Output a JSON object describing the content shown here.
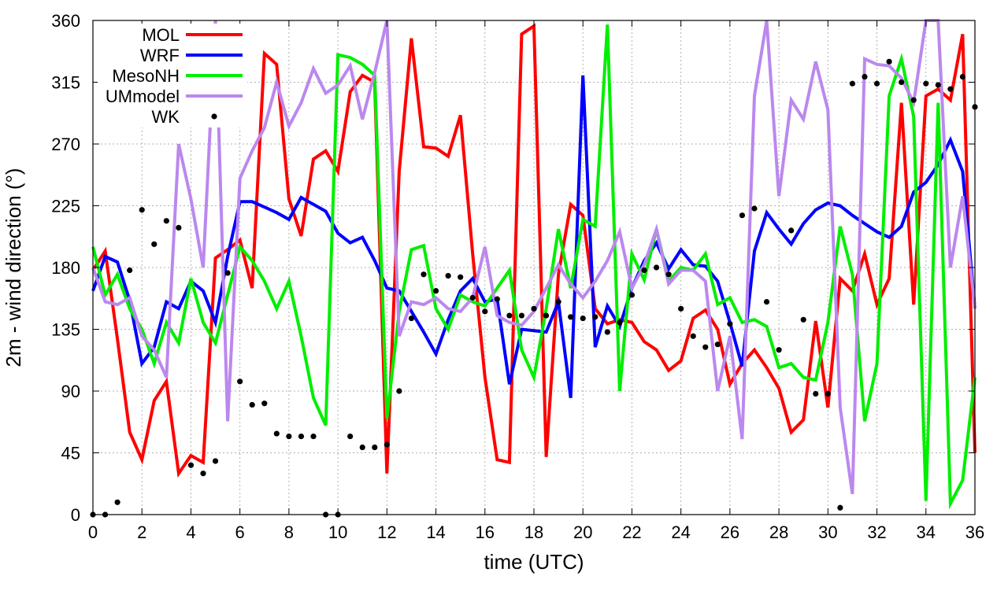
{
  "chart_data": {
    "type": "line",
    "title": "",
    "xlabel": "time (UTC)",
    "ylabel": "2m - wind direction (°)",
    "xlim": [
      0,
      36
    ],
    "ylim": [
      0,
      360
    ],
    "xticks": [
      0,
      2,
      4,
      6,
      8,
      10,
      12,
      14,
      16,
      18,
      20,
      22,
      24,
      26,
      28,
      30,
      32,
      34,
      36
    ],
    "yticks": [
      0,
      45,
      90,
      135,
      180,
      225,
      270,
      315,
      360
    ],
    "grid": true,
    "legend_position": "top-left",
    "series": [
      {
        "name": "MOL",
        "style": "line",
        "color": "#ff0000",
        "x": [
          0,
          0.5,
          1,
          1.5,
          2,
          2.5,
          3,
          3.5,
          4,
          4.5,
          5,
          5.5,
          6,
          6.5,
          7,
          7.5,
          8,
          8.5,
          9,
          9.5,
          10,
          10.5,
          11,
          11.5,
          12,
          12.5,
          13,
          13.5,
          14,
          14.5,
          15,
          15.5,
          16,
          16.5,
          17,
          17.5,
          18,
          18.5,
          19,
          19.5,
          20,
          20.5,
          21,
          21.5,
          22,
          22.5,
          23,
          23.5,
          24,
          24.5,
          25,
          25.5,
          26,
          26.5,
          27,
          27.5,
          28,
          28.5,
          29,
          29.5,
          30,
          30.5,
          31,
          31.5,
          32,
          32.5,
          33,
          33.5,
          34,
          34.5,
          35,
          35.5,
          36
        ],
        "y": [
          178,
          192,
          128,
          60,
          40,
          83,
          97,
          30,
          43,
          38,
          187,
          193,
          200,
          165,
          336,
          328,
          230,
          203,
          259,
          265,
          250,
          308,
          320,
          315,
          30,
          250,
          347,
          268,
          267,
          261,
          291,
          190,
          100,
          40,
          38,
          350,
          356,
          42,
          175,
          226,
          218,
          150,
          139,
          142,
          140,
          126,
          120,
          105,
          112,
          143,
          149,
          135,
          95,
          110,
          120,
          107,
          92,
          60,
          69,
          141,
          78,
          172,
          163,
          190,
          153,
          172,
          300,
          153,
          305,
          310,
          302,
          350,
          45
        ]
      },
      {
        "name": "WRF",
        "style": "line",
        "color": "#0000ff",
        "x": [
          0,
          0.5,
          1,
          1.5,
          2,
          2.5,
          3,
          3.5,
          4,
          4.5,
          5,
          5.5,
          6,
          6.5,
          7,
          7.5,
          8,
          8.5,
          9,
          9.5,
          10,
          10.5,
          11,
          11.5,
          12,
          12.5,
          13,
          13.5,
          14,
          14.5,
          15,
          15.5,
          16,
          16.5,
          17,
          17.5,
          18,
          18.5,
          19,
          19.5,
          20,
          20.5,
          21,
          21.5,
          22,
          22.5,
          23,
          23.5,
          24,
          24.5,
          25,
          25.5,
          26,
          26.5,
          27,
          27.5,
          28,
          28.5,
          29,
          29.5,
          30,
          30.5,
          31,
          31.5,
          32,
          32.5,
          33,
          33.5,
          34,
          34.5,
          35,
          35.5,
          36
        ],
        "y": [
          163,
          188,
          184,
          156,
          110,
          122,
          155,
          150,
          170,
          163,
          140,
          188,
          228,
          228,
          224,
          220,
          215,
          231,
          226,
          221,
          205,
          198,
          202,
          185,
          165,
          163,
          148,
          133,
          117,
          142,
          163,
          172,
          155,
          157,
          95,
          135,
          134,
          133,
          155,
          85,
          320,
          122,
          152,
          137,
          165,
          185,
          198,
          179,
          193,
          182,
          181,
          170,
          140,
          108,
          192,
          220,
          208,
          197,
          212,
          222,
          227,
          225,
          218,
          212,
          206,
          202,
          210,
          235,
          242,
          255,
          273,
          250,
          150
        ]
      },
      {
        "name": "MesoNH",
        "style": "line",
        "color": "#00ee00",
        "x": [
          0,
          0.5,
          1,
          1.5,
          2,
          2.5,
          3,
          3.5,
          4,
          4.5,
          5,
          5.5,
          6,
          6.5,
          7,
          7.5,
          8,
          8.5,
          9,
          9.5,
          10,
          10.5,
          11,
          11.5,
          12,
          12.5,
          13,
          13.5,
          14,
          14.5,
          15,
          15.5,
          16,
          16.5,
          17,
          17.5,
          18,
          18.5,
          19,
          19.5,
          20,
          20.5,
          21,
          21.5,
          22,
          22.5,
          23,
          23.5,
          24,
          24.5,
          25,
          25.5,
          26,
          26.5,
          27,
          27.5,
          28,
          28.5,
          29,
          29.5,
          30,
          30.5,
          31,
          31.5,
          32,
          32.5,
          33,
          33.5,
          34,
          34.5,
          35,
          35.5,
          36
        ],
        "y": [
          195,
          160,
          175,
          150,
          135,
          110,
          140,
          125,
          172,
          140,
          125,
          160,
          195,
          185,
          170,
          150,
          170,
          130,
          85,
          65,
          335,
          333,
          328,
          320,
          70,
          148,
          193,
          196,
          150,
          135,
          160,
          155,
          152,
          165,
          178,
          120,
          100,
          150,
          208,
          165,
          215,
          210,
          357,
          90,
          190,
          171,
          208,
          170,
          180,
          178,
          190,
          153,
          158,
          140,
          142,
          137,
          107,
          110,
          100,
          98,
          140,
          210,
          175,
          68,
          110,
          305,
          332,
          290,
          10,
          300,
          8,
          25,
          100
        ]
      },
      {
        "name": "UMmodel",
        "style": "line",
        "color": "#bb88ee",
        "x": [
          0,
          0.5,
          1,
          1.5,
          2,
          2.5,
          3,
          3.5,
          4,
          4.5,
          5,
          5.5,
          6,
          6.5,
          7,
          7.5,
          8,
          8.5,
          9,
          9.5,
          10,
          10.5,
          11,
          11.5,
          12,
          12.5,
          13,
          13.5,
          14,
          14.5,
          15,
          15.5,
          16,
          16.5,
          17,
          17.5,
          18,
          18.5,
          19,
          19.5,
          20,
          20.5,
          21,
          21.5,
          22,
          22.5,
          23,
          23.5,
          24,
          24.5,
          25,
          25.5,
          26,
          26.5,
          27,
          27.5,
          28,
          28.5,
          29,
          29.5,
          30,
          30.5,
          31,
          31.5,
          32,
          32.5,
          33,
          33.5,
          34,
          34.5,
          35,
          35.5,
          36
        ],
        "y": [
          180,
          155,
          153,
          158,
          130,
          120,
          100,
          270,
          230,
          180,
          360,
          68,
          245,
          265,
          282,
          315,
          283,
          300,
          325,
          307,
          313,
          327,
          288,
          322,
          362,
          130,
          155,
          153,
          158,
          150,
          148,
          158,
          195,
          145,
          140,
          138,
          148,
          165,
          182,
          168,
          158,
          170,
          185,
          206,
          165,
          182,
          208,
          168,
          178,
          178,
          170,
          90,
          130,
          55,
          305,
          362,
          232,
          302,
          288,
          330,
          295,
          78,
          15,
          332,
          328,
          327,
          318,
          300,
          362,
          362,
          180,
          232,
          150
        ]
      },
      {
        "name": "WK",
        "style": "points",
        "color": "#000000",
        "x": [
          0,
          0.5,
          1,
          1.5,
          2,
          2.5,
          3,
          3.5,
          4,
          4.5,
          5,
          5.5,
          6,
          6.5,
          7,
          7.5,
          8,
          8.5,
          9,
          9.5,
          10,
          10.5,
          11,
          11.5,
          12,
          12.5,
          13,
          13.5,
          14,
          14.5,
          15,
          15.5,
          16,
          16.5,
          17,
          17.5,
          18,
          18.5,
          19,
          19.5,
          20,
          20.5,
          21,
          21.5,
          22,
          22.5,
          23,
          23.5,
          24,
          24.5,
          25,
          25.5,
          26,
          26.5,
          27,
          27.5,
          28,
          28.5,
          29,
          29.5,
          30,
          30.5,
          31,
          31.5,
          32,
          32.5,
          33,
          33.5,
          34,
          34.5,
          35,
          35.5,
          36
        ],
        "y": [
          0,
          0,
          9,
          178,
          222,
          197,
          214,
          209,
          36,
          30,
          39,
          176,
          97,
          80,
          81,
          59,
          57,
          57,
          57,
          0,
          0,
          57,
          49,
          49,
          51,
          90,
          143,
          175,
          163,
          174,
          173,
          158,
          148,
          157,
          145,
          145,
          150,
          145,
          155,
          144,
          143,
          144,
          133,
          140,
          160,
          178,
          180,
          175,
          150,
          130,
          122,
          124,
          139,
          218,
          223,
          155,
          120,
          207,
          142,
          88,
          88,
          5,
          314,
          319,
          314,
          330,
          315,
          302,
          314,
          313,
          310,
          319,
          297
        ]
      }
    ]
  }
}
